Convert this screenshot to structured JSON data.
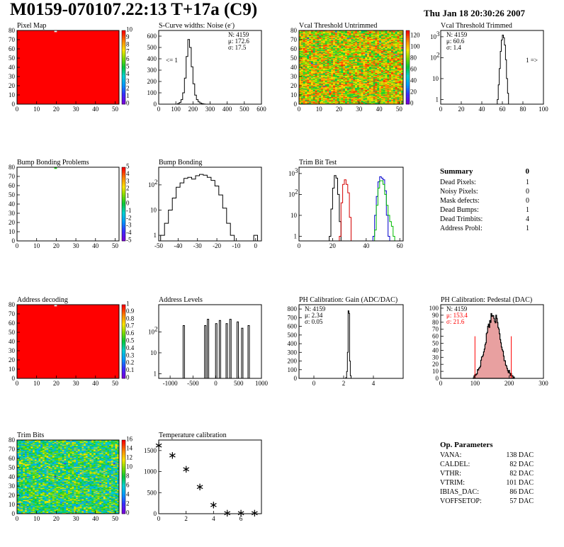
{
  "header": {
    "title": "M0159-070107.22:13 T+17a (C9)",
    "date": "Thu Jan 18 20:30:26 2007"
  },
  "colors": {
    "map_red": "#ff0000",
    "series_black": "#000000",
    "series_red": "#d40000",
    "series_blue": "#0000cc",
    "series_green": "#00bb00",
    "stat_red": "#ff0000",
    "pedestal_fill": "#e8a0a0"
  },
  "summary": {
    "title": "Summary",
    "total": "0",
    "rows": [
      {
        "label": "Dead Pixels:",
        "value": "1"
      },
      {
        "label": "Noisy Pixels:",
        "value": "0"
      },
      {
        "label": "Mask defects:",
        "value": "0"
      },
      {
        "label": "Dead Bumps:",
        "value": "1"
      },
      {
        "label": "Dead Trimbits:",
        "value": "4"
      },
      {
        "label": "Address Probl:",
        "value": "1"
      }
    ]
  },
  "op_parameters": {
    "title": "Op. Parameters",
    "rows": [
      {
        "label": "VANA:",
        "value": "138 DAC"
      },
      {
        "label": "CALDEL:",
        "value": "82 DAC"
      },
      {
        "label": "VTHR:",
        "value": "82 DAC"
      },
      {
        "label": "VTRIM:",
        "value": "101 DAC"
      },
      {
        "label": "IBIAS_DAC:",
        "value": "86 DAC"
      },
      {
        "label": "VOFFSETOP:",
        "value": "57 DAC"
      }
    ]
  },
  "chart_data": [
    {
      "id": "pixel-map",
      "type": "heatmap",
      "title": "Pixel Map",
      "xlim": [
        0,
        52
      ],
      "ylim": [
        0,
        80
      ],
      "xticks": [
        0,
        10,
        20,
        30,
        40,
        50
      ],
      "yticks": [
        0,
        10,
        20,
        30,
        40,
        50,
        60,
        70,
        80
      ],
      "fill": "uniform",
      "fill_value": 10,
      "zlim": [
        0,
        10
      ],
      "zticks": [
        0,
        1,
        2,
        3,
        4,
        5,
        6,
        7,
        8,
        9,
        10
      ],
      "special_pixels": [
        {
          "col": 19,
          "row": 79,
          "value": 0
        }
      ]
    },
    {
      "id": "scurve-noise",
      "type": "histogram",
      "title": "S-Curve widths: Noise (e<sup>-</sup>)",
      "xlim": [
        0,
        600
      ],
      "ylim": [
        0,
        650
      ],
      "xticks": [
        0,
        100,
        200,
        300,
        400,
        500,
        600
      ],
      "yticks": [
        0,
        100,
        200,
        300,
        400,
        500,
        600
      ],
      "stats": {
        "N": "4159",
        "mu": "172.6",
        "sigma": "17.5"
      },
      "annotation_left": "<= 1",
      "series": [
        {
          "bins": [
            [
              100,
              110,
              0
            ],
            [
              110,
              120,
              5
            ],
            [
              120,
              130,
              15
            ],
            [
              130,
              140,
              40
            ],
            [
              140,
              150,
              100
            ],
            [
              150,
              160,
              230
            ],
            [
              160,
              170,
              420
            ],
            [
              170,
              180,
              570
            ],
            [
              180,
              190,
              500
            ],
            [
              190,
              200,
              330
            ],
            [
              200,
              210,
              180
            ],
            [
              210,
              220,
              80
            ],
            [
              220,
              230,
              40
            ],
            [
              230,
              240,
              20
            ],
            [
              240,
              250,
              10
            ],
            [
              250,
              260,
              5
            ],
            [
              260,
              270,
              2
            ],
            [
              270,
              280,
              0
            ]
          ]
        }
      ]
    },
    {
      "id": "vcal-untrimmed",
      "type": "heatmap",
      "title": "Vcal Threshold Untrimmed",
      "xlim": [
        0,
        52
      ],
      "ylim": [
        0,
        80
      ],
      "xticks": [
        0,
        10,
        20,
        30,
        40,
        50
      ],
      "yticks": [
        0,
        10,
        20,
        30,
        40,
        50,
        60,
        70,
        80
      ],
      "fill": "random",
      "zlim": [
        0,
        130
      ],
      "zticks": [
        0,
        20,
        40,
        60,
        80,
        100,
        120
      ],
      "value_range": [
        60,
        125
      ]
    },
    {
      "id": "vcal-trimmed",
      "type": "histogram",
      "title": "Vcal Threshold Trimmed",
      "log_y": true,
      "xlim": [
        0,
        100
      ],
      "ylim": [
        0.6,
        2000
      ],
      "xticks": [
        0,
        20,
        40,
        60,
        80,
        100
      ],
      "yticks": [
        1,
        10,
        100,
        1000
      ],
      "stats": {
        "N": "4159",
        "mu": "60.6",
        "sigma": "1.4"
      },
      "annotation_right": "1 =>",
      "series": [
        {
          "bins": [
            [
              55,
              56,
              1
            ],
            [
              56,
              57,
              5
            ],
            [
              57,
              58,
              30
            ],
            [
              58,
              59,
              200
            ],
            [
              59,
              60,
              700
            ],
            [
              60,
              61,
              1200
            ],
            [
              61,
              62,
              900
            ],
            [
              62,
              63,
              400
            ],
            [
              63,
              64,
              80
            ],
            [
              64,
              65,
              10
            ],
            [
              65,
              66,
              2
            ]
          ]
        }
      ]
    },
    {
      "id": "bump-map",
      "type": "heatmap",
      "title": "Bump Bonding Problems",
      "xlim": [
        0,
        52
      ],
      "ylim": [
        0,
        80
      ],
      "xticks": [
        0,
        10,
        20,
        30,
        40,
        50
      ],
      "yticks": [
        0,
        10,
        20,
        30,
        40,
        50,
        60,
        70,
        80
      ],
      "fill": "empty",
      "zlim": [
        -5,
        5
      ],
      "zticks": [
        -5,
        -4,
        -3,
        -2,
        -1,
        0,
        1,
        2,
        3,
        4,
        5
      ],
      "special_pixels": [
        {
          "col": 19,
          "row": 79,
          "value": 1
        }
      ]
    },
    {
      "id": "bump-bonding",
      "type": "histogram",
      "title": "Bump Bonding",
      "log_y": true,
      "xlim": [
        -50,
        3
      ],
      "ylim": [
        0.6,
        500
      ],
      "xticks": [
        -50,
        -40,
        -30,
        -20,
        -10,
        0
      ],
      "yticks": [
        1,
        10,
        100
      ],
      "series": [
        {
          "bins": [
            [
              -49,
              -47,
              1
            ],
            [
              -47,
              -45,
              3
            ],
            [
              -45,
              -43,
              10
            ],
            [
              -43,
              -41,
              30
            ],
            [
              -41,
              -39,
              80
            ],
            [
              -39,
              -37,
              120
            ],
            [
              -37,
              -35,
              180
            ],
            [
              -35,
              -33,
              200
            ],
            [
              -33,
              -31,
              170
            ],
            [
              -31,
              -29,
              230
            ],
            [
              -29,
              -27,
              260
            ],
            [
              -27,
              -25,
              240
            ],
            [
              -25,
              -23,
              200
            ],
            [
              -23,
              -21,
              150
            ],
            [
              -21,
              -19,
              90
            ],
            [
              -19,
              -17,
              40
            ],
            [
              -17,
              -15,
              12
            ],
            [
              -15,
              -13,
              3
            ],
            [
              -13,
              -11,
              1
            ],
            [
              -11,
              -1,
              0
            ],
            [
              -1,
              1,
              1
            ]
          ]
        }
      ]
    },
    {
      "id": "trim-bit-test",
      "type": "histogram",
      "title": "Trim Bit Test",
      "log_y": true,
      "xlim": [
        0,
        62
      ],
      "ylim": [
        0.6,
        2000
      ],
      "xticks": [
        0,
        20,
        40,
        60
      ],
      "yticks": [
        1,
        10,
        100,
        1000
      ],
      "series": [
        {
          "color": "black",
          "bins": [
            [
              18,
              19,
              1
            ],
            [
              19,
              20,
              20
            ],
            [
              20,
              21,
              200
            ],
            [
              21,
              22,
              800
            ],
            [
              22,
              23,
              600
            ],
            [
              23,
              24,
              100
            ],
            [
              24,
              25,
              5
            ]
          ]
        },
        {
          "color": "red",
          "bins": [
            [
              24,
              25,
              1
            ],
            [
              25,
              26,
              40
            ],
            [
              26,
              27,
              300
            ],
            [
              27,
              28,
              500
            ],
            [
              28,
              29,
              300
            ],
            [
              29,
              30,
              120
            ],
            [
              30,
              31,
              8
            ]
          ]
        },
        {
          "color": "blue",
          "bins": [
            [
              44,
              45,
              1
            ],
            [
              45,
              46,
              10
            ],
            [
              46,
              47,
              80
            ],
            [
              47,
              48,
              400
            ],
            [
              48,
              49,
              700
            ],
            [
              49,
              50,
              600
            ],
            [
              50,
              51,
              500
            ],
            [
              51,
              52,
              150
            ],
            [
              52,
              53,
              10
            ],
            [
              53,
              54,
              1
            ]
          ]
        },
        {
          "color": "green",
          "bins": [
            [
              45,
              46,
              2
            ],
            [
              46,
              47,
              30
            ],
            [
              47,
              48,
              200
            ],
            [
              48,
              49,
              450
            ],
            [
              49,
              50,
              450
            ],
            [
              50,
              51,
              300
            ],
            [
              51,
              52,
              100
            ],
            [
              52,
              53,
              30
            ],
            [
              53,
              54,
              10
            ],
            [
              54,
              55,
              5
            ],
            [
              55,
              56,
              3
            ],
            [
              56,
              57,
              1
            ]
          ]
        }
      ]
    },
    {
      "id": "address-map",
      "type": "heatmap",
      "title": "Address decoding",
      "xlim": [
        0,
        52
      ],
      "ylim": [
        0,
        80
      ],
      "xticks": [
        0,
        10,
        20,
        30,
        40,
        50
      ],
      "yticks": [
        0,
        10,
        20,
        30,
        40,
        50,
        60,
        70,
        80
      ],
      "fill": "uniform",
      "fill_value": 1,
      "zlim": [
        0,
        1
      ],
      "zticks": [
        0,
        0.1,
        0.2,
        0.3,
        0.4,
        0.5,
        0.6,
        0.7,
        0.8,
        0.9,
        1
      ],
      "special_pixels": [
        {
          "col": 19,
          "row": 79,
          "value": 0
        }
      ]
    },
    {
      "id": "address-levels",
      "type": "histogram",
      "title": "Address Levels",
      "log_y": true,
      "xlim": [
        -1250,
        1000
      ],
      "ylim": [
        0.6,
        2000
      ],
      "xticks": [
        -1000,
        -500,
        0,
        500,
        1000
      ],
      "yticks": [
        1,
        10,
        100
      ],
      "spikes": [
        {
          "x": -700,
          "h": 200
        },
        {
          "x": -230,
          "h": 200
        },
        {
          "x": -170,
          "h": 400
        },
        {
          "x": 10,
          "h": 250
        },
        {
          "x": 90,
          "h": 350
        },
        {
          "x": 240,
          "h": 250
        },
        {
          "x": 320,
          "h": 400
        },
        {
          "x": 480,
          "h": 300
        },
        {
          "x": 580,
          "h": 150
        },
        {
          "x": 720,
          "h": 200
        }
      ]
    },
    {
      "id": "ph-gain",
      "type": "histogram",
      "title": "PH Calibration: Gain (ADC/DAC)",
      "xlim": [
        -1,
        6
      ],
      "ylim": [
        0,
        850
      ],
      "xticks": [
        0,
        2,
        4
      ],
      "yticks": [
        0,
        100,
        200,
        300,
        400,
        500,
        600,
        700,
        800
      ],
      "stats": {
        "N": "4159",
        "mu": "2.34",
        "sigma": "0.05"
      },
      "series": [
        {
          "bins": [
            [
              2.15,
              2.2,
              10
            ],
            [
              2.2,
              2.25,
              80
            ],
            [
              2.25,
              2.3,
              300
            ],
            [
              2.3,
              2.35,
              780
            ],
            [
              2.35,
              2.4,
              750
            ],
            [
              2.4,
              2.45,
              200
            ],
            [
              2.45,
              2.5,
              30
            ],
            [
              2.5,
              2.55,
              0
            ]
          ]
        }
      ]
    },
    {
      "id": "ph-pedestal",
      "type": "histogram",
      "title": "PH Calibration: Pedestal (DAC)",
      "xlim": [
        0,
        300
      ],
      "ylim": [
        0,
        105
      ],
      "xticks": [
        0,
        100,
        200,
        300
      ],
      "yticks": [
        0,
        10,
        20,
        30,
        40,
        50,
        60,
        70,
        80,
        90,
        100
      ],
      "stats": {
        "N": "4159",
        "mu": "153.4",
        "sigma": "21.6"
      },
      "stats_color": [
        "black",
        "red",
        "red"
      ],
      "markers": [
        {
          "x": 100,
          "h": 60
        },
        {
          "x": 206,
          "h": 60
        }
      ],
      "filled": true
    },
    {
      "id": "trim-bits-map",
      "type": "heatmap",
      "title": "Trim Bits",
      "xlim": [
        0,
        52
      ],
      "ylim": [
        0,
        80
      ],
      "xticks": [
        0,
        10,
        20,
        30,
        40,
        50
      ],
      "yticks": [
        0,
        10,
        20,
        30,
        40,
        50,
        60,
        70,
        80
      ],
      "fill": "random",
      "zlim": [
        0,
        16
      ],
      "zticks": [
        0,
        2,
        4,
        6,
        8,
        10,
        12,
        14,
        16
      ],
      "value_range": [
        4,
        12
      ]
    },
    {
      "id": "temperature-calibration",
      "type": "scatter",
      "title": "Temperature calibration",
      "xlim": [
        0,
        7.5
      ],
      "ylim": [
        0,
        1750
      ],
      "xticks": [
        0,
        2,
        4,
        6
      ],
      "yticks": [
        0,
        500,
        1000,
        1500
      ],
      "x": [
        0,
        1,
        2,
        3,
        4,
        5,
        6,
        7
      ],
      "y": [
        1620,
        1390,
        1060,
        640,
        210,
        20,
        20,
        20
      ]
    }
  ]
}
